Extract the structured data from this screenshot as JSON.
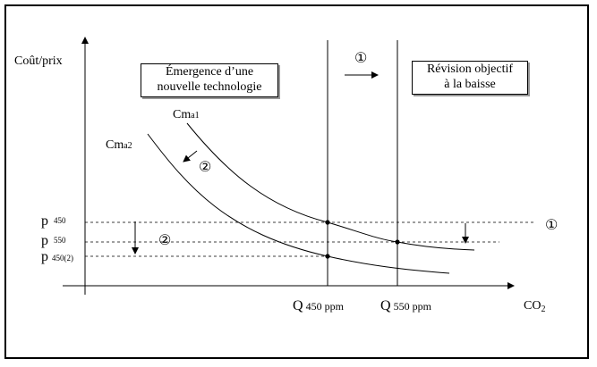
{
  "axes": {
    "y_label": "Coût/prix",
    "x_label": "CO",
    "x_label_sub": "2"
  },
  "boxes": {
    "left_line1": "Émergence d’une",
    "left_line2": "nouvelle technologie",
    "right_line1": "Révision objectif",
    "right_line2": "à la baisse"
  },
  "curves": {
    "cm1": {
      "main": "Cm",
      "sub": "a1"
    },
    "cm2": {
      "main": "Cm",
      "sub": "a2"
    }
  },
  "prices": [
    {
      "main": "p",
      "sub": "450"
    },
    {
      "main": "p",
      "sub": "550"
    },
    {
      "main": "p",
      "sub": "450(2)"
    }
  ],
  "quantities": [
    {
      "main": "Q",
      "sub": " 450 ppm"
    },
    {
      "main": "Q",
      "sub": " 550 ppm"
    }
  ],
  "markers": {
    "one": "①",
    "two": "②"
  }
}
